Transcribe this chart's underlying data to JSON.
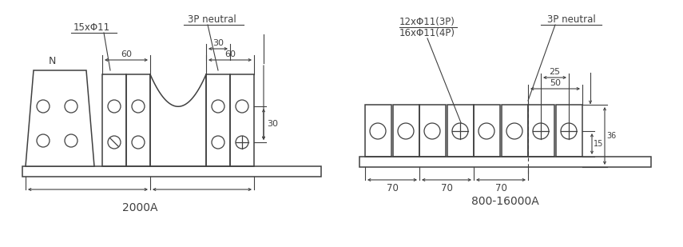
{
  "figsize": [
    8.55,
    3.09
  ],
  "dpi": 100,
  "bg_color": "#ffffff",
  "line_color": "#404040",
  "text_color": "#404040",
  "left_label": "2000A",
  "right_label": "800-16000A",
  "left_note1": "15xΦ11",
  "right_note1": "12xΦ11(3P)",
  "right_note2": "16xΦ11(4P)",
  "neutral_label": "3P neutral",
  "N_label": "N"
}
